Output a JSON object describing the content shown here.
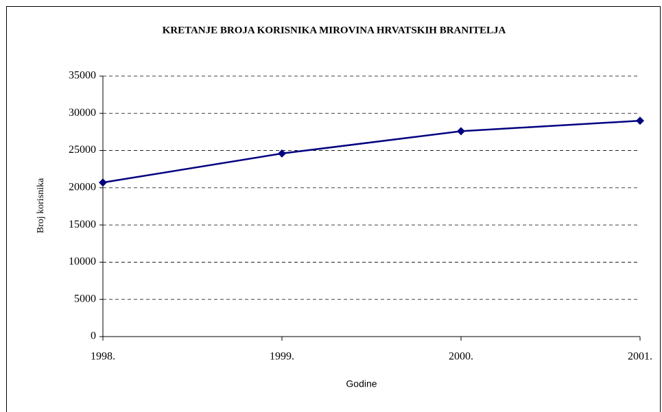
{
  "chart_data": {
    "type": "line",
    "title": "KRETANJE BROJA KORISNIKA MIROVINA HRVATSKIH BRANITELJA",
    "x_label": "Godine",
    "y_label": "Broj korisnika",
    "categories": [
      "1998.",
      "1999.",
      "2000.",
      "2001."
    ],
    "series": [
      {
        "name": "Broj korisnika",
        "color": "#000080",
        "values": [
          20700,
          24600,
          27600,
          29000
        ]
      }
    ],
    "ylim": [
      0,
      35000
    ],
    "yticks": [
      0,
      5000,
      10000,
      15000,
      20000,
      25000,
      30000,
      35000
    ],
    "grid": true,
    "legend": false
  }
}
